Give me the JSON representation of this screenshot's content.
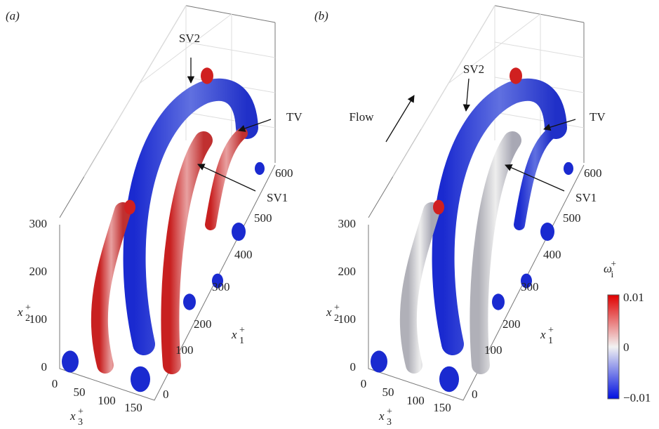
{
  "panels": [
    {
      "label": "(a)",
      "x2_ticks": [
        "0",
        "100",
        "200",
        "300"
      ],
      "x1_ticks": [
        "0",
        "100",
        "200",
        "300",
        "400",
        "500",
        "600"
      ],
      "x3_ticks": [
        "0",
        "50",
        "100",
        "150"
      ],
      "x1_title": {
        "base": "x",
        "sup": "+",
        "sub": "1"
      },
      "x2_title": {
        "base": "x",
        "sup": "+",
        "sub": "2"
      },
      "x3_title": {
        "base": "x",
        "sup": "+",
        "sub": "3"
      },
      "annotations": [
        "SV2",
        "TV",
        "SV1"
      ]
    },
    {
      "label": "(b)",
      "x2_ticks": [
        "0",
        "100",
        "200",
        "300"
      ],
      "x1_ticks": [
        "0",
        "100",
        "200",
        "300",
        "400",
        "500",
        "600"
      ],
      "x3_ticks": [
        "0",
        "50",
        "100",
        "150"
      ],
      "x1_title": {
        "base": "x",
        "sup": "+",
        "sub": "1"
      },
      "x2_title": {
        "base": "x",
        "sup": "+",
        "sub": "2"
      },
      "x3_title": {
        "base": "x",
        "sup": "+",
        "sub": "3"
      },
      "annotations": [
        "Flow",
        "SV2",
        "TV",
        "SV1"
      ]
    }
  ],
  "colorbar": {
    "title": {
      "base": "ω",
      "sup": "+",
      "sub": "i"
    },
    "ticks": [
      "0.01",
      "0",
      "−0.01"
    ]
  }
}
